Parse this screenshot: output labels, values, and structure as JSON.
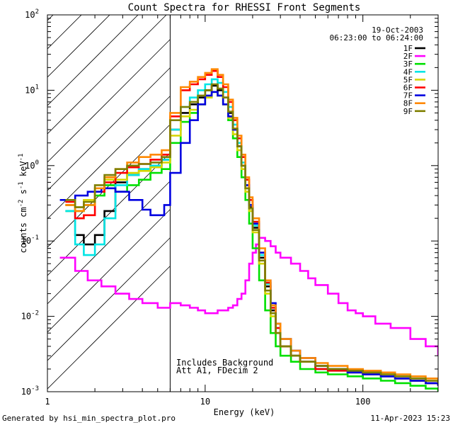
{
  "chart_data": {
    "type": "line",
    "title": "Count Spectra for RHESSI Front Segments",
    "xlabel": "Energy (keV)",
    "ylabel_parts": [
      "counts cm",
      "-2",
      " s",
      "-1",
      " keV",
      "-1"
    ],
    "xscale": "log",
    "yscale": "log",
    "xlim": [
      1,
      300
    ],
    "ylim": [
      0.001,
      100
    ],
    "x_tick_labels": [
      {
        "value": 1,
        "label": "1"
      },
      {
        "value": 10,
        "label": "10"
      },
      {
        "value": 100,
        "label": "100"
      }
    ],
    "y_tick_labels": [
      {
        "value": 0.001,
        "base": "10",
        "exp": "-3"
      },
      {
        "value": 0.01,
        "base": "10",
        "exp": "-2"
      },
      {
        "value": 0.1,
        "base": "10",
        "exp": "-1"
      },
      {
        "value": 1,
        "base": "10",
        "exp": "0"
      },
      {
        "value": 10,
        "base": "10",
        "exp": "1"
      },
      {
        "value": 100,
        "base": "10",
        "exp": "2"
      }
    ],
    "hatched_region": {
      "from": 1,
      "to": 6
    },
    "date": "19-Oct-2003",
    "time_range": "06:23:00 to 06:24:00",
    "annotations": [
      "Includes Background",
      "Att A1, FDecim 2"
    ],
    "series": [
      {
        "name": "1F",
        "color": "#000000",
        "x": [
          1.3,
          1.5,
          1.7,
          2.0,
          2.3,
          2.7,
          3.2,
          3.8,
          4.5,
          5.3,
          6.0,
          7.0,
          8.0,
          9.0,
          10.0,
          11.0,
          12.0,
          13.0,
          14.0,
          15.0,
          16.0,
          17.0,
          18.0,
          19.0,
          20.0,
          22.0,
          24.0,
          26.0,
          28.0,
          30.0,
          35.0,
          40.0,
          50.0,
          60.0,
          80.0,
          100.0,
          130.0,
          160.0,
          200.0,
          250.0,
          300.0
        ],
        "y": [
          0.3,
          0.12,
          0.09,
          0.12,
          0.25,
          0.6,
          0.75,
          0.9,
          1.0,
          1.2,
          3.0,
          5.0,
          6.5,
          8.0,
          10.0,
          11.5,
          10.0,
          8.0,
          5.0,
          3.0,
          1.8,
          1.0,
          0.5,
          0.28,
          0.15,
          0.06,
          0.025,
          0.012,
          0.006,
          0.004,
          0.003,
          0.0025,
          0.002,
          0.002,
          0.0018,
          0.0017,
          0.0016,
          0.0015,
          0.0014,
          0.0013,
          0.0012
        ]
      },
      {
        "name": "2F",
        "color": "#ff00ff",
        "x": [
          1.2,
          1.5,
          1.8,
          2.2,
          2.7,
          3.3,
          4.0,
          5.0,
          6.0,
          7.0,
          8.0,
          9.0,
          10.0,
          11.0,
          12.0,
          13.0,
          14.0,
          15.0,
          16.0,
          17.0,
          18.0,
          19.0,
          20.0,
          21.0,
          22.0,
          24.0,
          26.0,
          28.0,
          30.0,
          35.0,
          40.0,
          45.0,
          50.0,
          60.0,
          70.0,
          80.0,
          90.0,
          100.0,
          120.0,
          150.0,
          200.0,
          250.0,
          300.0
        ],
        "y": [
          0.06,
          0.04,
          0.03,
          0.025,
          0.02,
          0.017,
          0.015,
          0.013,
          0.015,
          0.014,
          0.013,
          0.012,
          0.011,
          0.011,
          0.012,
          0.012,
          0.013,
          0.014,
          0.017,
          0.02,
          0.03,
          0.05,
          0.07,
          0.09,
          0.11,
          0.1,
          0.085,
          0.07,
          0.06,
          0.05,
          0.04,
          0.032,
          0.026,
          0.02,
          0.015,
          0.012,
          0.011,
          0.01,
          0.008,
          0.007,
          0.005,
          0.004,
          0.003
        ]
      },
      {
        "name": "3F",
        "color": "#00e000",
        "x": [
          1.3,
          1.5,
          1.7,
          2.0,
          2.3,
          2.7,
          3.2,
          3.8,
          4.5,
          5.3,
          6.0,
          7.0,
          8.0,
          9.0,
          10.0,
          11.0,
          12.0,
          13.0,
          14.0,
          15.0,
          16.0,
          17.0,
          18.0,
          19.0,
          20.0,
          22.0,
          24.0,
          26.0,
          28.0,
          30.0,
          35.0,
          40.0,
          50.0,
          60.0,
          80.0,
          100.0,
          130.0,
          160.0,
          200.0,
          250.0,
          300.0
        ],
        "y": [
          0.25,
          0.25,
          0.3,
          0.4,
          0.55,
          0.45,
          0.55,
          0.65,
          0.8,
          0.9,
          2.0,
          3.8,
          5.0,
          6.5,
          8.0,
          9.5,
          8.5,
          6.5,
          4.0,
          2.3,
          1.3,
          0.7,
          0.35,
          0.17,
          0.08,
          0.03,
          0.012,
          0.006,
          0.004,
          0.003,
          0.0025,
          0.002,
          0.0018,
          0.0017,
          0.0016,
          0.0015,
          0.0014,
          0.0013,
          0.0012,
          0.0011,
          0.001
        ]
      },
      {
        "name": "4F",
        "color": "#00e5e5",
        "x": [
          1.3,
          1.5,
          1.7,
          2.0,
          2.3,
          2.7,
          3.2,
          3.8,
          4.5,
          5.3,
          6.0,
          7.0,
          8.0,
          9.0,
          10.0,
          11.0,
          12.0,
          13.0,
          14.0,
          15.0,
          16.0,
          17.0,
          18.0,
          19.0,
          20.0,
          22.0,
          24.0,
          26.0,
          28.0,
          30.0,
          35.0,
          40.0,
          50.0,
          60.0,
          80.0,
          100.0,
          130.0,
          160.0,
          200.0,
          250.0,
          300.0
        ],
        "y": [
          0.25,
          0.09,
          0.065,
          0.09,
          0.2,
          0.55,
          0.75,
          0.9,
          1.0,
          1.2,
          3.0,
          6.0,
          8.0,
          10.0,
          12.0,
          14.0,
          12.5,
          9.5,
          6.0,
          3.5,
          2.0,
          1.1,
          0.55,
          0.3,
          0.16,
          0.065,
          0.027,
          0.013,
          0.007,
          0.004,
          0.003,
          0.0025,
          0.002,
          0.0019,
          0.0018,
          0.0017,
          0.0016,
          0.0015,
          0.0014,
          0.0013,
          0.0012
        ]
      },
      {
        "name": "5F",
        "color": "#d6d600",
        "x": [
          1.3,
          1.5,
          1.7,
          2.0,
          2.3,
          2.7,
          3.2,
          3.8,
          4.5,
          5.3,
          6.0,
          7.0,
          8.0,
          9.0,
          10.0,
          11.0,
          12.0,
          13.0,
          14.0,
          15.0,
          16.0,
          17.0,
          18.0,
          19.0,
          20.0,
          22.0,
          24.0,
          26.0,
          28.0,
          30.0,
          35.0,
          40.0,
          50.0,
          60.0,
          80.0,
          100.0,
          130.0,
          160.0,
          200.0,
          250.0,
          300.0
        ],
        "y": [
          0.3,
          0.28,
          0.35,
          0.5,
          0.65,
          0.65,
          0.8,
          0.85,
          0.95,
          1.1,
          2.5,
          4.5,
          5.5,
          6.5,
          8.0,
          9.5,
          8.5,
          6.5,
          4.3,
          2.6,
          1.6,
          0.9,
          0.45,
          0.25,
          0.13,
          0.05,
          0.02,
          0.01,
          0.006,
          0.004,
          0.003,
          0.0025,
          0.0022,
          0.002,
          0.0019,
          0.0018,
          0.0017,
          0.0016,
          0.0015,
          0.0014,
          0.0013
        ]
      },
      {
        "name": "6F",
        "color": "#ff0000",
        "x": [
          1.3,
          1.5,
          1.7,
          2.0,
          2.3,
          2.7,
          3.2,
          3.8,
          4.5,
          5.3,
          6.0,
          7.0,
          8.0,
          9.0,
          10.0,
          11.0,
          12.0,
          13.0,
          14.0,
          15.0,
          16.0,
          17.0,
          18.0,
          19.0,
          20.0,
          22.0,
          24.0,
          26.0,
          28.0,
          30.0,
          35.0,
          40.0,
          50.0,
          60.0,
          80.0,
          100.0,
          130.0,
          160.0,
          200.0,
          250.0,
          300.0
        ],
        "y": [
          0.33,
          0.2,
          0.22,
          0.45,
          0.6,
          0.8,
          0.95,
          1.05,
          1.2,
          1.4,
          4.5,
          10.0,
          12.0,
          14.0,
          16.0,
          18.0,
          15.0,
          11.0,
          7.0,
          4.0,
          2.3,
          1.3,
          0.65,
          0.35,
          0.18,
          0.07,
          0.028,
          0.013,
          0.007,
          0.004,
          0.003,
          0.0025,
          0.002,
          0.0019,
          0.0018,
          0.0017,
          0.0016,
          0.0015,
          0.0014,
          0.0013,
          0.0012
        ]
      },
      {
        "name": "7F",
        "color": "#0000e0",
        "x": [
          1.2,
          1.5,
          1.8,
          2.2,
          2.7,
          3.3,
          4.0,
          4.5,
          5.0,
          5.5,
          6.0,
          7.0,
          8.0,
          9.0,
          10.0,
          11.0,
          12.0,
          13.0,
          14.0,
          15.0,
          16.0,
          17.0,
          18.0,
          19.0,
          20.0,
          22.0,
          24.0,
          26.0,
          28.0,
          30.0,
          35.0,
          40.0,
          50.0,
          60.0,
          80.0,
          100.0,
          130.0,
          160.0,
          200.0,
          250.0,
          300.0
        ],
        "y": [
          0.35,
          0.4,
          0.45,
          0.5,
          0.45,
          0.35,
          0.26,
          0.22,
          0.22,
          0.3,
          0.8,
          2.0,
          4.0,
          6.5,
          8.5,
          9.5,
          8.5,
          6.5,
          4.5,
          3.0,
          1.8,
          1.0,
          0.55,
          0.3,
          0.17,
          0.07,
          0.03,
          0.015,
          0.008,
          0.005,
          0.0035,
          0.0028,
          0.0022,
          0.002,
          0.0018,
          0.0017,
          0.0016,
          0.0015,
          0.0014,
          0.0013,
          0.0012
        ]
      },
      {
        "name": "8F",
        "color": "#ff8800",
        "x": [
          1.3,
          1.5,
          1.7,
          2.0,
          2.3,
          2.7,
          3.2,
          3.8,
          4.5,
          5.3,
          6.0,
          7.0,
          8.0,
          9.0,
          10.0,
          11.0,
          12.0,
          13.0,
          14.0,
          15.0,
          16.0,
          17.0,
          18.0,
          19.0,
          20.0,
          22.0,
          24.0,
          26.0,
          28.0,
          30.0,
          35.0,
          40.0,
          50.0,
          60.0,
          80.0,
          100.0,
          130.0,
          160.0,
          200.0,
          250.0,
          300.0
        ],
        "y": [
          0.3,
          0.25,
          0.3,
          0.5,
          0.7,
          0.9,
          1.1,
          1.3,
          1.4,
          1.6,
          5.0,
          11.0,
          13.0,
          15.0,
          17.0,
          19.0,
          16.0,
          12.0,
          7.5,
          4.3,
          2.5,
          1.4,
          0.7,
          0.38,
          0.2,
          0.08,
          0.03,
          0.014,
          0.008,
          0.005,
          0.0035,
          0.0028,
          0.0024,
          0.0022,
          0.002,
          0.0019,
          0.0018,
          0.0017,
          0.0016,
          0.0015,
          0.0014
        ]
      },
      {
        "name": "9F",
        "color": "#7f7f00",
        "x": [
          1.3,
          1.5,
          1.7,
          2.0,
          2.3,
          2.7,
          3.2,
          3.8,
          4.5,
          5.3,
          6.0,
          7.0,
          8.0,
          9.0,
          10.0,
          11.0,
          12.0,
          13.0,
          14.0,
          15.0,
          16.0,
          17.0,
          18.0,
          19.0,
          20.0,
          22.0,
          24.0,
          26.0,
          28.0,
          30.0,
          35.0,
          40.0,
          50.0,
          60.0,
          80.0,
          100.0,
          130.0,
          160.0,
          200.0,
          250.0,
          300.0
        ],
        "y": [
          0.35,
          0.28,
          0.33,
          0.55,
          0.75,
          0.9,
          1.0,
          1.05,
          1.1,
          1.3,
          4.0,
          6.0,
          7.0,
          8.5,
          10.0,
          12.0,
          10.5,
          8.0,
          5.2,
          3.1,
          1.8,
          1.0,
          0.5,
          0.27,
          0.14,
          0.055,
          0.022,
          0.011,
          0.006,
          0.004,
          0.003,
          0.0025,
          0.0022,
          0.002,
          0.0019,
          0.0018,
          0.0017,
          0.0016,
          0.0015,
          0.0014,
          0.0013
        ]
      }
    ]
  },
  "footer": {
    "generated_by": "Generated by hsi_min_spectra_plot.pro",
    "timestamp": "11-Apr-2023 15:23"
  }
}
